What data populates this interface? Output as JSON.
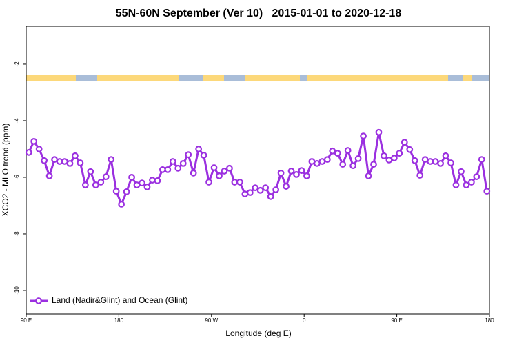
{
  "chart_data": {
    "type": "line",
    "title": "55N-60N September (Ver 10)   2015-01-01 to 2020-12-18",
    "xlabel": "Longitude (deg E)",
    "ylabel": "XCO2 - MLO trend (ppm)",
    "xlim": [
      90,
      540
    ],
    "xticks": [
      {
        "value": 90,
        "label": "90 E"
      },
      180,
      {
        "value": 270,
        "label": "90 W"
      },
      {
        "value": 360,
        "label": "0"
      },
      {
        "value": 450,
        "label": "90 E"
      },
      {
        "value": 540,
        "label": "180"
      }
    ],
    "ylim": [
      -10.83,
      -0.66
    ],
    "yticks": [
      -2,
      -4,
      -6,
      -8,
      -10
    ],
    "legend": "lower left",
    "x": [
      92.5,
      97.5,
      102.5,
      107.5,
      112.5,
      117.5,
      122.5,
      127.5,
      132.5,
      137.5,
      142.5,
      147.5,
      152.5,
      157.5,
      162.5,
      167.5,
      172.5,
      177.5,
      182.5,
      187.5,
      192.5,
      197.5,
      202.5,
      207.5,
      212.5,
      217.5,
      222.5,
      227.5,
      232.5,
      237.5,
      242.5,
      247.5,
      252.5,
      257.5,
      262.5,
      267.5,
      272.5,
      277.5,
      282.5,
      287.5,
      292.5,
      297.5,
      302.5,
      307.5,
      312.5,
      317.5,
      322.5,
      327.5,
      332.5,
      337.5,
      342.5,
      347.5,
      352.5,
      357.5,
      362.5,
      367.5,
      372.5,
      377.5,
      382.5,
      387.5,
      392.5,
      397.5,
      402.5,
      407.5,
      412.5,
      417.5,
      422.5,
      427.5,
      432.5,
      437.5,
      442.5,
      447.5,
      452.5,
      457.5,
      462.5,
      467.5,
      472.5,
      477.5,
      482.5,
      487.5,
      492.5,
      497.5,
      502.5,
      507.5,
      512.5,
      517.5,
      522.5,
      527.5,
      532.5,
      537.5
    ],
    "series": [
      {
        "name": "Land (Nadir&Glint) and Ocean (Glint)",
        "color": "#9b30e0",
        "values": [
          -5.12,
          -4.73,
          -5.0,
          -5.41,
          -5.95,
          -5.37,
          -5.44,
          -5.44,
          -5.51,
          -5.24,
          -5.49,
          -6.27,
          -5.8,
          -6.27,
          -6.17,
          -5.98,
          -5.37,
          -6.49,
          -6.95,
          -6.51,
          -6.0,
          -6.27,
          -6.2,
          -6.34,
          -6.1,
          -6.12,
          -5.73,
          -5.73,
          -5.44,
          -5.68,
          -5.51,
          -5.2,
          -5.85,
          -5.0,
          -5.22,
          -6.17,
          -5.66,
          -5.95,
          -5.78,
          -5.68,
          -6.17,
          -6.17,
          -6.59,
          -6.54,
          -6.37,
          -6.46,
          -6.37,
          -6.68,
          -6.44,
          -5.85,
          -6.32,
          -5.78,
          -5.9,
          -5.76,
          -5.95,
          -5.44,
          -5.51,
          -5.44,
          -5.37,
          -5.07,
          -5.15,
          -5.54,
          -5.05,
          -5.59,
          -5.34,
          -4.54,
          -5.95,
          -5.54,
          -4.41,
          -5.24,
          -5.39,
          -5.32,
          -5.15,
          -4.76,
          -5.02,
          -5.41,
          -5.93,
          -5.37,
          -5.44,
          -5.44,
          -5.51,
          -5.24,
          -5.49,
          -6.27,
          -5.8,
          -6.27,
          -6.17,
          -5.98,
          -5.37,
          -6.49
        ]
      }
    ]
  }
}
